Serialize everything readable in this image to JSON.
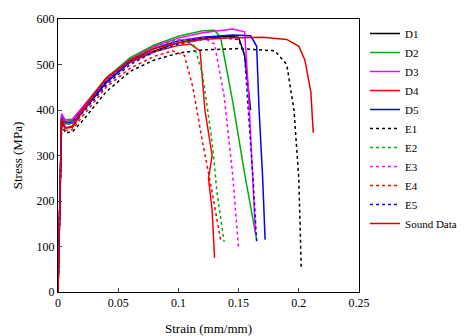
{
  "chart_data": {
    "type": "line",
    "x_label": "Strain (mm/mm)",
    "y_label": "Stress (MPa)",
    "xlim": [
      0,
      0.25
    ],
    "xticks": [
      0,
      0.05,
      0.1,
      0.15,
      0.2,
      0.25
    ],
    "ylim": [
      0,
      600
    ],
    "yticks": [
      0,
      100,
      200,
      300,
      400,
      500,
      600
    ],
    "grid": false,
    "legend": "right",
    "series": [
      {
        "name": "D1",
        "color": "#000000",
        "line_style": "solid",
        "x": [
          0,
          0.003,
          0.006,
          0.012,
          0.02,
          0.04,
          0.06,
          0.08,
          0.1,
          0.12,
          0.14,
          0.15,
          0.155,
          0.16
        ],
        "values": [
          0,
          385,
          370,
          372,
          395,
          460,
          505,
          530,
          548,
          558,
          562,
          560,
          520,
          400
        ]
      },
      {
        "name": "D2",
        "color": "#00b000",
        "line_style": "solid",
        "x": [
          0,
          0.003,
          0.006,
          0.012,
          0.02,
          0.04,
          0.06,
          0.08,
          0.1,
          0.12,
          0.13,
          0.135,
          0.145,
          0.155,
          0.165
        ],
        "values": [
          0,
          390,
          375,
          378,
          405,
          470,
          515,
          543,
          562,
          574,
          575,
          560,
          420,
          260,
          115
        ]
      },
      {
        "name": "D3",
        "color": "#ff00ff",
        "line_style": "solid",
        "x": [
          0,
          0.003,
          0.006,
          0.012,
          0.02,
          0.04,
          0.06,
          0.08,
          0.1,
          0.12,
          0.145,
          0.155,
          0.158,
          0.161,
          0.164
        ],
        "values": [
          0,
          392,
          378,
          380,
          405,
          468,
          512,
          540,
          558,
          570,
          578,
          572,
          450,
          300,
          130
        ]
      },
      {
        "name": "D4",
        "color": "#ff0000",
        "line_style": "solid",
        "x": [
          0,
          0.003,
          0.006,
          0.012,
          0.02,
          0.04,
          0.06,
          0.08,
          0.1,
          0.11,
          0.118,
          0.122,
          0.128,
          0.125,
          0.128,
          0.13
        ],
        "values": [
          0,
          380,
          360,
          362,
          395,
          465,
          505,
          528,
          542,
          545,
          530,
          400,
          300,
          250,
          180,
          75
        ]
      },
      {
        "name": "D5",
        "color": "#0000ff",
        "line_style": "solid",
        "x": [
          0,
          0.003,
          0.006,
          0.012,
          0.02,
          0.04,
          0.06,
          0.08,
          0.1,
          0.12,
          0.145,
          0.16,
          0.165,
          0.167,
          0.17,
          0.172
        ],
        "values": [
          0,
          385,
          372,
          374,
          400,
          462,
          508,
          535,
          552,
          560,
          565,
          563,
          540,
          400,
          250,
          115
        ]
      },
      {
        "name": "E1",
        "color": "#000000",
        "line_style": "dot",
        "x": [
          0,
          0.003,
          0.006,
          0.012,
          0.02,
          0.04,
          0.06,
          0.08,
          0.1,
          0.12,
          0.15,
          0.18,
          0.19,
          0.196,
          0.2,
          0.202
        ],
        "values": [
          0,
          370,
          350,
          352,
          375,
          440,
          485,
          510,
          525,
          532,
          535,
          530,
          500,
          400,
          250,
          55
        ]
      },
      {
        "name": "E2",
        "color": "#00b000",
        "line_style": "dot",
        "x": [
          0,
          0.003,
          0.006,
          0.012,
          0.02,
          0.04,
          0.06,
          0.08,
          0.1,
          0.112,
          0.12,
          0.128,
          0.132,
          0.138
        ],
        "values": [
          0,
          385,
          368,
          370,
          400,
          468,
          512,
          540,
          555,
          550,
          480,
          330,
          220,
          110
        ]
      },
      {
        "name": "E3",
        "color": "#ff00ff",
        "line_style": "dot",
        "x": [
          0,
          0.003,
          0.006,
          0.012,
          0.02,
          0.04,
          0.06,
          0.08,
          0.1,
          0.12,
          0.13,
          0.138,
          0.145,
          0.15
        ],
        "values": [
          0,
          388,
          370,
          372,
          402,
          465,
          510,
          538,
          553,
          560,
          545,
          430,
          260,
          95
        ]
      },
      {
        "name": "E4",
        "color": "#ff0000",
        "line_style": "dot",
        "x": [
          0,
          0.003,
          0.006,
          0.012,
          0.02,
          0.04,
          0.06,
          0.08,
          0.095,
          0.105,
          0.112,
          0.12,
          0.128,
          0.135
        ],
        "values": [
          0,
          375,
          355,
          357,
          385,
          450,
          492,
          518,
          530,
          520,
          450,
          330,
          220,
          115
        ]
      },
      {
        "name": "E5",
        "color": "#0000ff",
        "line_style": "dot",
        "x": [
          0,
          0.003,
          0.006,
          0.012,
          0.02,
          0.04,
          0.06,
          0.08,
          0.1,
          0.13,
          0.15,
          0.155,
          0.158,
          0.162,
          0.165
        ],
        "values": [
          0,
          380,
          362,
          364,
          392,
          455,
          500,
          528,
          545,
          560,
          555,
          520,
          400,
          250,
          110
        ]
      },
      {
        "name": "Sound Data",
        "color": "#e00000",
        "line_style": "solid",
        "x": [
          0,
          0.003,
          0.006,
          0.012,
          0.02,
          0.04,
          0.06,
          0.08,
          0.1,
          0.12,
          0.14,
          0.17,
          0.19,
          0.2,
          0.205,
          0.21,
          0.212
        ],
        "values": [
          0,
          380,
          360,
          365,
          400,
          470,
          510,
          535,
          548,
          555,
          558,
          560,
          555,
          540,
          510,
          440,
          350
        ]
      }
    ]
  }
}
